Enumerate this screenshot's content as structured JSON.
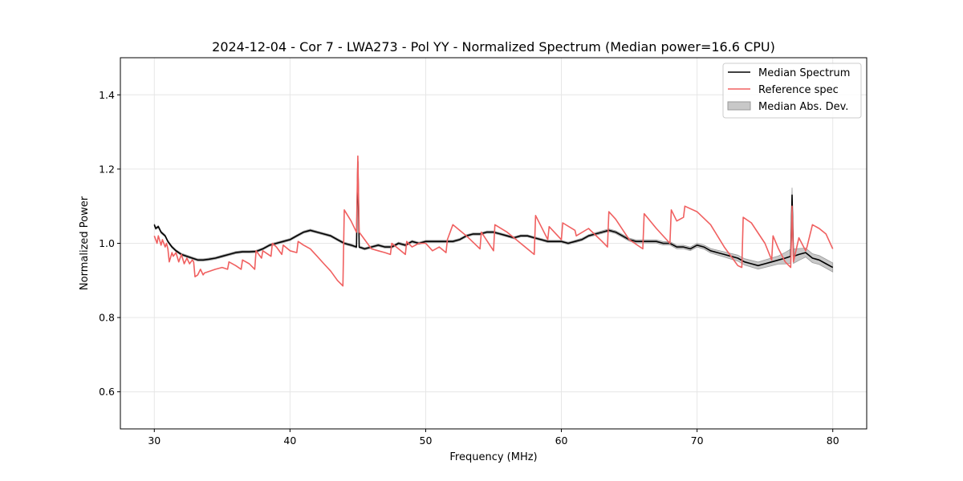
{
  "chart_data": {
    "type": "line",
    "title": "2024-12-04 - Cor 7 - LWA273 - Pol YY - Normalized Spectrum (Median power=16.6 CPU)",
    "xlabel": "Frequency (MHz)",
    "ylabel": "Normalized Power",
    "xlim": [
      27.5,
      82.5
    ],
    "ylim": [
      0.5,
      1.5
    ],
    "x_ticks": [
      30,
      40,
      50,
      60,
      70,
      80
    ],
    "y_ticks": [
      0.6,
      0.8,
      1.0,
      1.2,
      1.4
    ],
    "x_tick_labels": [
      "30",
      "40",
      "50",
      "60",
      "70",
      "80"
    ],
    "y_tick_labels": [
      "0.6",
      "0.8",
      "1.0",
      "1.2",
      "1.4"
    ],
    "grid": true,
    "legend_position": "top-right",
    "colors": {
      "median": "#000000",
      "reference": "#f06060",
      "mad_fill": "#c8c8c8",
      "mad_edge": "#9a9a9a",
      "grid": "#e6e6e6"
    },
    "legend": [
      {
        "label": "Median Spectrum",
        "kind": "line",
        "series": "median"
      },
      {
        "label": "Reference spec",
        "kind": "line",
        "series": "reference"
      },
      {
        "label": "Median Abs. Dev.",
        "kind": "patch",
        "series": "mad"
      }
    ],
    "series": [
      {
        "name": "Median Spectrum",
        "key": "median",
        "x": [
          30.0,
          30.1,
          30.3,
          30.5,
          30.8,
          31.0,
          31.3,
          31.6,
          32.0,
          32.4,
          32.8,
          33.2,
          33.6,
          34.0,
          34.5,
          35.0,
          35.5,
          36.0,
          36.5,
          37.0,
          37.5,
          38.0,
          38.5,
          39.0,
          39.5,
          40.0,
          40.5,
          41.0,
          41.5,
          42.0,
          42.5,
          43.0,
          43.5,
          44.0,
          44.5,
          44.9,
          45.0,
          45.1,
          45.5,
          46.0,
          46.5,
          47.0,
          47.5,
          48.0,
          48.5,
          49.0,
          49.5,
          50.0,
          50.5,
          51.0,
          51.5,
          52.0,
          52.5,
          53.0,
          53.5,
          54.0,
          54.5,
          55.0,
          55.5,
          56.0,
          56.5,
          57.0,
          57.5,
          58.0,
          58.5,
          59.0,
          59.5,
          60.0,
          60.5,
          61.0,
          61.5,
          62.0,
          62.5,
          63.0,
          63.5,
          64.0,
          64.5,
          65.0,
          65.5,
          66.0,
          66.5,
          67.0,
          67.5,
          68.0,
          68.5,
          69.0,
          69.5,
          70.0,
          70.5,
          71.0,
          71.5,
          72.0,
          72.5,
          73.0,
          73.5,
          74.0,
          74.5,
          75.0,
          75.5,
          76.0,
          76.5,
          76.9,
          77.0,
          77.1,
          77.5,
          78.0,
          78.5,
          79.0,
          79.5,
          80.0
        ],
        "values": [
          1.05,
          1.04,
          1.045,
          1.03,
          1.02,
          1.005,
          0.99,
          0.98,
          0.97,
          0.965,
          0.96,
          0.955,
          0.955,
          0.957,
          0.96,
          0.965,
          0.97,
          0.975,
          0.977,
          0.977,
          0.978,
          0.985,
          0.995,
          1.0,
          1.005,
          1.01,
          1.02,
          1.03,
          1.035,
          1.03,
          1.025,
          1.02,
          1.01,
          1.0,
          0.995,
          0.99,
          1.22,
          0.99,
          0.985,
          0.99,
          0.995,
          0.99,
          0.99,
          1.0,
          0.995,
          1.005,
          1.0,
          1.005,
          1.005,
          1.005,
          1.005,
          1.005,
          1.01,
          1.02,
          1.025,
          1.025,
          1.03,
          1.03,
          1.025,
          1.02,
          1.015,
          1.02,
          1.02,
          1.015,
          1.01,
          1.005,
          1.005,
          1.005,
          1.0,
          1.005,
          1.01,
          1.02,
          1.025,
          1.03,
          1.035,
          1.03,
          1.02,
          1.01,
          1.005,
          1.005,
          1.005,
          1.005,
          1.0,
          1.0,
          0.99,
          0.99,
          0.985,
          0.995,
          0.99,
          0.98,
          0.975,
          0.97,
          0.965,
          0.96,
          0.95,
          0.945,
          0.94,
          0.945,
          0.95,
          0.955,
          0.96,
          0.965,
          1.13,
          0.965,
          0.97,
          0.975,
          0.96,
          0.955,
          0.945,
          0.935
        ]
      },
      {
        "name": "Reference spec",
        "key": "reference",
        "x": [
          30.0,
          30.2,
          30.3,
          30.5,
          30.6,
          30.8,
          30.9,
          31.0,
          31.1,
          31.3,
          31.4,
          31.6,
          31.8,
          32.0,
          32.2,
          32.4,
          32.6,
          32.8,
          32.9,
          33.0,
          33.2,
          33.4,
          33.6,
          33.7,
          34.5,
          35.0,
          35.4,
          35.5,
          36.0,
          36.4,
          36.5,
          37.0,
          37.4,
          37.5,
          37.9,
          38.0,
          38.6,
          38.7,
          39.0,
          39.4,
          39.5,
          40.0,
          40.5,
          40.6,
          41.0,
          41.5,
          42.0,
          42.5,
          43.0,
          43.5,
          43.9,
          44.0,
          44.5,
          44.9,
          45.0,
          45.1,
          45.5,
          46.0,
          46.5,
          47.0,
          47.4,
          47.5,
          48.0,
          48.5,
          48.6,
          49.0,
          49.5,
          50.0,
          50.5,
          51.0,
          51.5,
          51.6,
          52.0,
          53.0,
          54.0,
          54.1,
          55.0,
          55.1,
          56.0,
          57.0,
          58.0,
          58.1,
          59.0,
          59.1,
          60.0,
          60.1,
          61.0,
          61.1,
          62.0,
          63.0,
          63.4,
          63.5,
          64.0,
          65.0,
          66.0,
          66.1,
          67.0,
          68.0,
          68.1,
          68.5,
          69.0,
          69.1,
          70.0,
          71.0,
          72.0,
          73.0,
          73.3,
          73.4,
          74.0,
          75.0,
          75.5,
          75.6,
          76.0,
          76.5,
          76.9,
          77.0,
          77.1,
          77.5,
          78.0,
          78.1,
          78.5,
          79.0,
          79.5,
          80.0
        ],
        "values": [
          1.02,
          1.0,
          1.02,
          0.995,
          1.01,
          0.99,
          1.0,
          0.985,
          0.95,
          0.975,
          0.965,
          0.975,
          0.95,
          0.97,
          0.945,
          0.96,
          0.945,
          0.955,
          0.95,
          0.91,
          0.915,
          0.93,
          0.915,
          0.92,
          0.93,
          0.935,
          0.93,
          0.95,
          0.94,
          0.93,
          0.955,
          0.945,
          0.93,
          0.98,
          0.96,
          0.98,
          0.965,
          1.0,
          0.99,
          0.97,
          0.995,
          0.98,
          0.975,
          1.005,
          0.995,
          0.985,
          0.965,
          0.945,
          0.925,
          0.9,
          0.885,
          1.09,
          1.06,
          1.03,
          1.235,
          1.03,
          1.01,
          0.985,
          0.98,
          0.975,
          0.97,
          1.0,
          0.985,
          0.97,
          1.005,
          0.99,
          1.0,
          1.0,
          0.98,
          0.99,
          0.975,
          1.01,
          1.05,
          1.02,
          0.985,
          1.03,
          0.98,
          1.05,
          1.03,
          1.0,
          0.97,
          1.075,
          1.01,
          1.045,
          1.01,
          1.055,
          1.035,
          1.02,
          1.04,
          1.005,
          0.99,
          1.085,
          1.065,
          1.01,
          0.985,
          1.08,
          1.04,
          1.0,
          1.09,
          1.06,
          1.07,
          1.1,
          1.085,
          1.05,
          0.99,
          0.94,
          0.935,
          1.07,
          1.055,
          1.0,
          0.955,
          1.02,
          0.985,
          0.95,
          0.935,
          1.1,
          0.95,
          1.015,
          0.98,
          0.99,
          1.05,
          1.04,
          1.025,
          0.985
        ]
      },
      {
        "name": "Median Abs. Dev.",
        "key": "mad",
        "x": [
          30.0,
          35.0,
          40.0,
          45.0,
          50.0,
          55.0,
          60.0,
          65.0,
          70.0,
          72.0,
          74.0,
          76.0,
          77.0,
          78.0,
          80.0
        ],
        "values": [
          0.003,
          0.003,
          0.003,
          0.003,
          0.003,
          0.003,
          0.003,
          0.004,
          0.005,
          0.007,
          0.009,
          0.011,
          0.02,
          0.012,
          0.012
        ]
      }
    ]
  }
}
